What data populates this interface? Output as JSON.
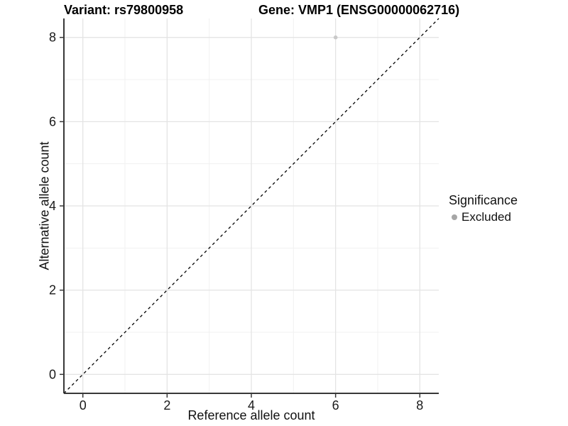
{
  "titles": {
    "variant": "Variant: rs79800958",
    "gene": "Gene: VMP1 (ENSG00000062716)"
  },
  "axes": {
    "xlabel": "Reference allele count",
    "ylabel": "Alternative allele count"
  },
  "legend": {
    "title": "Significance",
    "items": [
      {
        "label": "Excluded",
        "color": "#a6a6a6"
      }
    ]
  },
  "chart_data": {
    "type": "scatter",
    "title": "Variant: rs79800958 — Gene: VMP1 (ENSG00000062716)",
    "xlabel": "Reference allele count",
    "ylabel": "Alternative allele count",
    "xlim": [
      -0.45,
      8.45
    ],
    "ylim": [
      -0.45,
      8.45
    ],
    "x_ticks": [
      0,
      2,
      4,
      6,
      8
    ],
    "y_ticks": [
      0,
      2,
      4,
      6,
      8
    ],
    "grid": {
      "minor_every": 1,
      "major_every": 2,
      "major_color": "#e4e4e4",
      "minor_color": "#f1f1f1",
      "grid_on": true
    },
    "series": [
      {
        "name": "Excluded",
        "color": "#c9c9c9",
        "points": [
          {
            "x": 6,
            "y": 8
          }
        ]
      }
    ],
    "reference_line": {
      "type": "identity y=x",
      "from": -0.45,
      "to": 8.45,
      "style": "dashed",
      "color": "#000000"
    },
    "legend_position": "right",
    "axis_line_color": "#383838",
    "tick_text_color": "#1a1a1a"
  }
}
